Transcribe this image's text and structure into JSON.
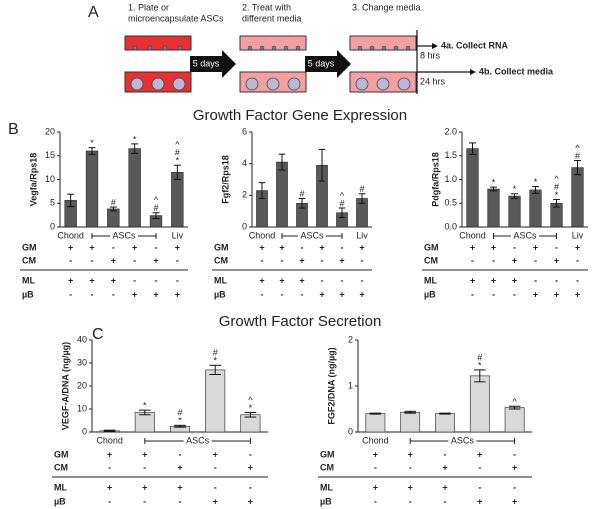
{
  "panels": {
    "a": {
      "label": "A",
      "step1": [
        "1. Plate or",
        "microencapsulate ASCs"
      ],
      "step2": [
        "2. Treat with",
        "different media"
      ],
      "step3": "3. Change media",
      "arrows": [
        "5 days",
        "5 days"
      ],
      "branches": [
        {
          "time": "8 hrs",
          "text": "4a. Collect RNA"
        },
        {
          "time": "24 hrs",
          "text": "4b. Collect media"
        }
      ]
    },
    "b": {
      "label": "B",
      "title": "Growth Factor Gene Expression"
    },
    "c": {
      "label": "C",
      "title": "Growth Factor Secretion"
    }
  },
  "chart_data": [
    {
      "type": "bar",
      "ylabel": "Vegfa/Rps18",
      "color": "#595959",
      "categories": [
        "Chond",
        null,
        null,
        null,
        null,
        "Liv"
      ],
      "group_label": "ASCs",
      "values": [
        5.6,
        16,
        3.8,
        16.5,
        2.4,
        11.5
      ],
      "errors": [
        1.3,
        0.7,
        0.4,
        1.0,
        0.6,
        1.5
      ],
      "annotations": [
        null,
        [
          "*"
        ],
        [
          "#"
        ],
        [
          "*"
        ],
        [
          "^",
          "#"
        ],
        [
          "^",
          "#",
          "*"
        ]
      ],
      "ylim": [
        0,
        20
      ],
      "yticks": [
        0,
        5,
        10,
        15,
        20
      ],
      "conditions": [
        {
          "name": "GM",
          "values": [
            "+",
            "+",
            "-",
            "+",
            "-",
            "+"
          ]
        },
        {
          "name": "CM",
          "values": [
            "-",
            "-",
            "+",
            "-",
            "+",
            "-"
          ]
        },
        {
          "name": "ML",
          "values": [
            "+",
            "+",
            "+",
            "-",
            "-",
            "-"
          ]
        },
        {
          "name": "µB",
          "values": [
            "-",
            "-",
            "-",
            "+",
            "+",
            "+"
          ]
        }
      ]
    },
    {
      "type": "bar",
      "ylabel": "Fgf2/Rps18",
      "color": "#595959",
      "categories": [
        "Chond",
        null,
        null,
        null,
        null,
        "Liv"
      ],
      "group_label": "ASCs",
      "values": [
        2.3,
        4.1,
        1.5,
        3.9,
        0.9,
        1.8
      ],
      "errors": [
        0.5,
        0.5,
        0.3,
        1.0,
        0.3,
        0.3
      ],
      "annotations": [
        null,
        null,
        [
          "#"
        ],
        null,
        [
          "^",
          "#"
        ],
        [
          "#"
        ]
      ],
      "ylim": [
        0,
        6
      ],
      "yticks": [
        0,
        2,
        4,
        6
      ],
      "conditions": [
        {
          "name": "GM",
          "values": [
            "+",
            "+",
            "-",
            "+",
            "-",
            "+"
          ]
        },
        {
          "name": "CM",
          "values": [
            "-",
            "-",
            "+",
            "-",
            "+",
            "-"
          ]
        },
        {
          "name": "ML",
          "values": [
            "+",
            "+",
            "+",
            "-",
            "-",
            "-"
          ]
        },
        {
          "name": "µB",
          "values": [
            "-",
            "-",
            "-",
            "+",
            "+",
            "+"
          ]
        }
      ]
    },
    {
      "type": "bar",
      "ylabel": "Pdgfa/Rps18",
      "color": "#595959",
      "categories": [
        "Chond",
        null,
        null,
        null,
        null,
        "Liv"
      ],
      "group_label": "ASCs",
      "values": [
        1.65,
        0.8,
        0.65,
        0.78,
        0.5,
        1.25
      ],
      "errors": [
        0.12,
        0.04,
        0.05,
        0.07,
        0.08,
        0.15
      ],
      "annotations": [
        null,
        [
          "*"
        ],
        [
          "*"
        ],
        [
          "*"
        ],
        [
          "^",
          "#",
          "*"
        ],
        [
          "^",
          "#"
        ]
      ],
      "ylim": [
        0,
        2
      ],
      "yticks": [
        {
          "value": 0,
          "label": "0.0"
        },
        {
          "value": 0.5,
          "label": "0.5"
        },
        {
          "value": 1,
          "label": "1.0"
        },
        {
          "value": 1.5,
          "label": "1.5"
        },
        {
          "value": 2,
          "label": "2.0"
        }
      ],
      "conditions": [
        {
          "name": "GM",
          "values": [
            "+",
            "+",
            "-",
            "+",
            "-",
            "+"
          ]
        },
        {
          "name": "CM",
          "values": [
            "-",
            "-",
            "+",
            "-",
            "+",
            "-"
          ]
        },
        {
          "name": "ML",
          "values": [
            "+",
            "+",
            "+",
            "-",
            "-",
            "-"
          ]
        },
        {
          "name": "µB",
          "values": [
            "-",
            "-",
            "-",
            "+",
            "+",
            "+"
          ]
        }
      ]
    },
    {
      "type": "bar",
      "ylabel": "VEGF-A/DNA (ng/µg)",
      "color": "#d9d9d9",
      "categories": [
        "Chond",
        null,
        null,
        null,
        null
      ],
      "group_label": "ASCs",
      "values": [
        0.5,
        8.5,
        2.5,
        27,
        7.5
      ],
      "errors": [
        0.3,
        1.0,
        0.4,
        2.0,
        1.0
      ],
      "annotations": [
        null,
        [
          "*"
        ],
        [
          "#",
          "*"
        ],
        [
          "#",
          "*"
        ],
        [
          "^",
          "*"
        ]
      ],
      "ylim": [
        0,
        40
      ],
      "yticks": [
        0,
        10,
        20,
        30,
        40
      ],
      "conditions": [
        {
          "name": "GM",
          "values": [
            "+",
            "+",
            "-",
            "+",
            "-"
          ]
        },
        {
          "name": "CM",
          "values": [
            "-",
            "-",
            "+",
            "-",
            "+"
          ]
        },
        {
          "name": "ML",
          "values": [
            "+",
            "+",
            "+",
            "-",
            "-"
          ]
        },
        {
          "name": "µB",
          "values": [
            "-",
            "-",
            "-",
            "+",
            "+"
          ]
        }
      ]
    },
    {
      "type": "bar",
      "ylabel": "FGF2/DNA (ng/µg)",
      "color": "#d9d9d9",
      "categories": [
        "Chond",
        null,
        null,
        null,
        null
      ],
      "group_label": "ASCs",
      "values": [
        0.4,
        0.43,
        0.4,
        1.22,
        0.53
      ],
      "errors": [
        0.01,
        0.02,
        0.01,
        0.13,
        0.03
      ],
      "annotations": [
        null,
        null,
        null,
        [
          "#",
          "*"
        ],
        [
          "^"
        ]
      ],
      "ylim": [
        0,
        2
      ],
      "yticks": [
        0,
        1,
        2
      ],
      "conditions": [
        {
          "name": "GM",
          "values": [
            "+",
            "+",
            "-",
            "+",
            "-"
          ]
        },
        {
          "name": "CM",
          "values": [
            "-",
            "-",
            "+",
            "-",
            "+"
          ]
        },
        {
          "name": "ML",
          "values": [
            "+",
            "+",
            "+",
            "-",
            "-"
          ]
        },
        {
          "name": "µB",
          "values": [
            "-",
            "-",
            "-",
            "+",
            "+"
          ]
        }
      ]
    }
  ]
}
